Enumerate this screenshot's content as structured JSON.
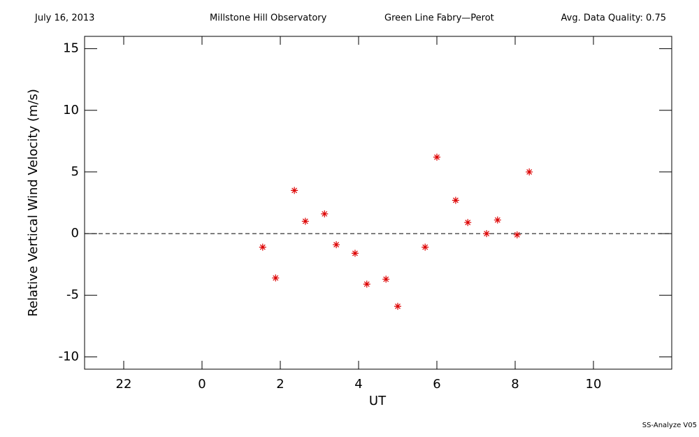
{
  "chart_data": {
    "type": "scatter",
    "date": "July 16, 2013",
    "observatory": "Millstone Hill Observatory",
    "instrument": "Green Line Fabry—Perot",
    "quality": "Avg. Data Quality: 0.75",
    "footer": "SS-Analyze V05",
    "xlabel": "UT",
    "ylabel": "Relative Vertical Wind Velocity (m/s)",
    "xlim": [
      -3,
      12
    ],
    "ylim": [
      -11,
      16
    ],
    "xticks": [
      {
        "value": -2,
        "label": "22"
      },
      0,
      2,
      4,
      6,
      8,
      10
    ],
    "yticks": [
      -10,
      -5,
      0,
      5,
      10,
      15
    ],
    "reference_line": 0,
    "series": [
      {
        "color": "#dd0000",
        "x": [
          1.55,
          1.88,
          2.36,
          2.64,
          3.13,
          3.43,
          3.91,
          4.21,
          4.7,
          5.0,
          5.7,
          6.0,
          6.48,
          6.79,
          7.27,
          7.55,
          8.05,
          8.36
        ],
        "values": [
          -1.1,
          -3.6,
          3.5,
          1.0,
          1.6,
          -0.9,
          -1.6,
          -4.1,
          -3.7,
          -5.9,
          -1.1,
          6.2,
          2.7,
          0.9,
          0.0,
          1.1,
          -0.1,
          5.0
        ]
      }
    ]
  }
}
